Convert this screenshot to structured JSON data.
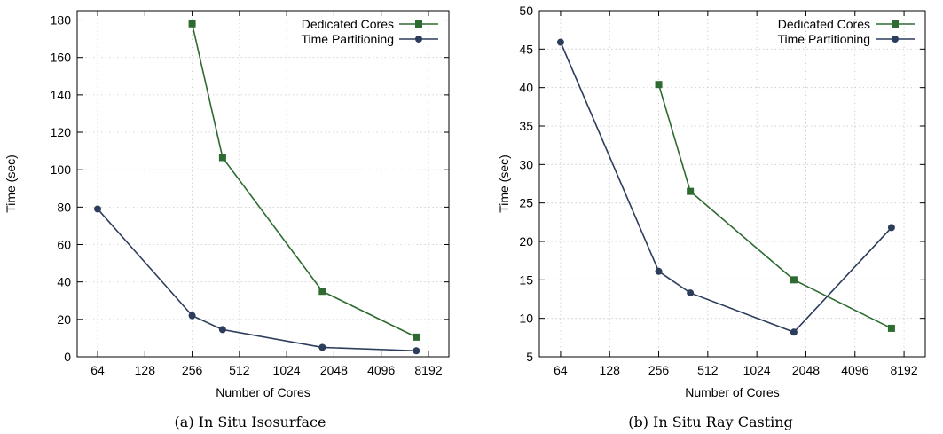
{
  "chart_data": [
    {
      "type": "line",
      "caption": "(a) In Situ Isosurface",
      "xlabel": "Number of Cores",
      "ylabel": "Time (sec)",
      "xscale": "log2",
      "xticks": [
        64,
        128,
        256,
        512,
        1024,
        2048,
        4096,
        8192
      ],
      "yticks": [
        0,
        20,
        40,
        60,
        80,
        100,
        120,
        140,
        160,
        180
      ],
      "ylim": [
        0,
        185
      ],
      "grid": true,
      "legend_position": "top-right",
      "series": [
        {
          "name": "Dedicated Cores",
          "color": "#2e6b30",
          "marker": "square",
          "x": [
            256,
            400,
            1728,
            6859
          ],
          "y": [
            178,
            106.5,
            35,
            10.5
          ]
        },
        {
          "name": "Time Partitioning",
          "color": "#2c3d5c",
          "marker": "circle",
          "x": [
            64,
            256,
            400,
            1728,
            6859
          ],
          "y": [
            79,
            22,
            14.5,
            5,
            3.2
          ]
        }
      ]
    },
    {
      "type": "line",
      "caption": "(b) In Situ Ray Casting",
      "xlabel": "Number of Cores",
      "ylabel": "Time (sec)",
      "xscale": "log2",
      "xticks": [
        64,
        128,
        256,
        512,
        1024,
        2048,
        4096,
        8192
      ],
      "yticks": [
        5,
        10,
        15,
        20,
        25,
        30,
        35,
        40,
        45,
        50
      ],
      "ylim": [
        5,
        50
      ],
      "grid": true,
      "legend_position": "top-right",
      "series": [
        {
          "name": "Dedicated Cores",
          "color": "#2e6b30",
          "marker": "square",
          "x": [
            256,
            400,
            1728,
            6859
          ],
          "y": [
            40.4,
            26.5,
            15,
            8.7
          ]
        },
        {
          "name": "Time Partitioning",
          "color": "#2c3d5c",
          "marker": "circle",
          "x": [
            64,
            256,
            400,
            1728,
            6859
          ],
          "y": [
            45.9,
            16.1,
            13.3,
            8.2,
            21.8
          ]
        }
      ]
    }
  ]
}
